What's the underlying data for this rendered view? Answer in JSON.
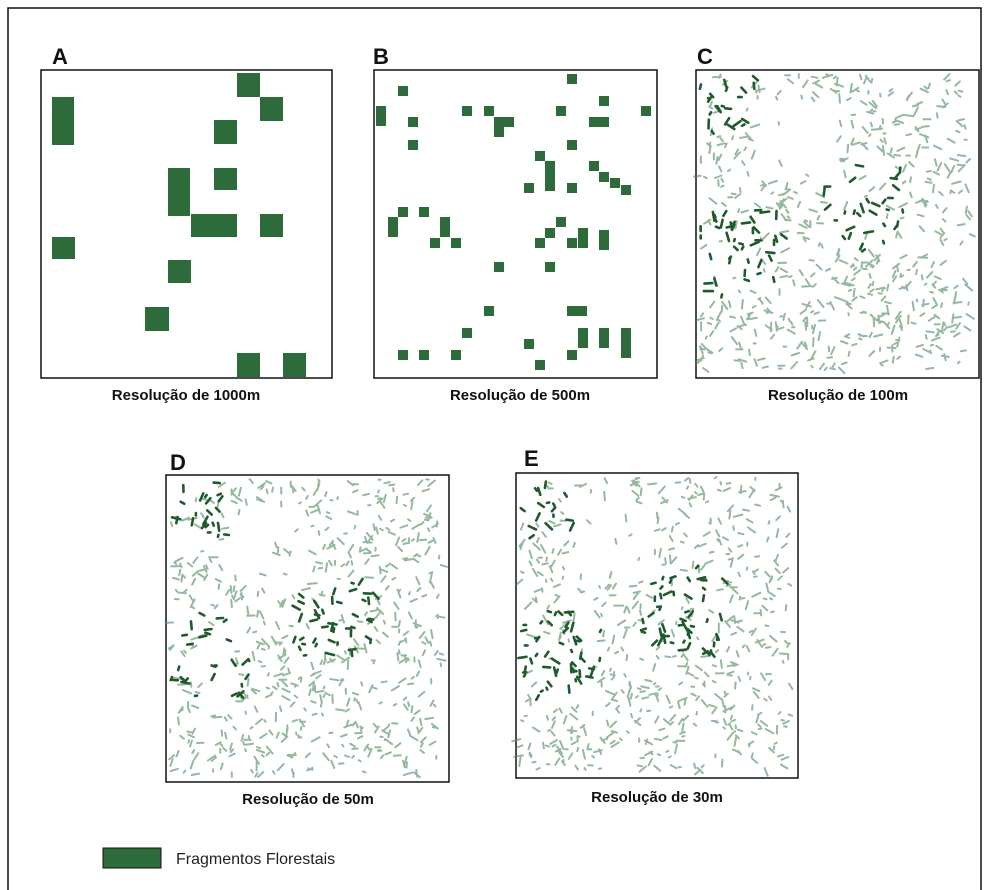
{
  "panels": [
    {
      "letter": "A",
      "caption": "Resolução de 1000m"
    },
    {
      "letter": "B",
      "caption": "Resolução de 500m"
    },
    {
      "letter": "C",
      "caption": "Resolução de 100m"
    },
    {
      "letter": "D",
      "caption": "Resolução de 50m"
    },
    {
      "letter": "E",
      "caption": "Resolução de 30m"
    }
  ],
  "legend": {
    "label": "Fragmentos Florestais"
  }
}
